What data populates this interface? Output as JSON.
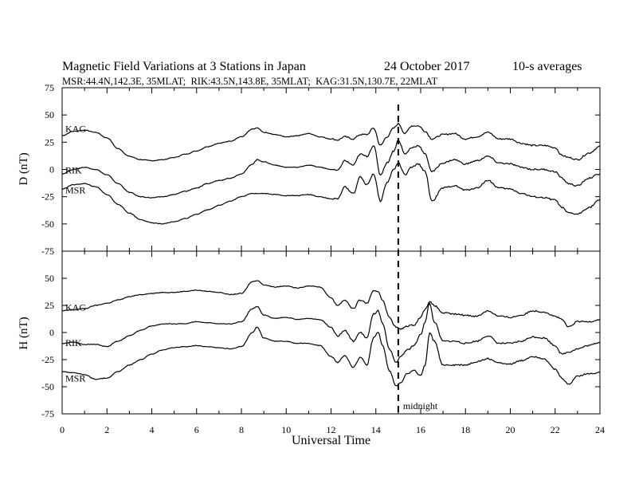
{
  "header": {
    "title": "Magnetic Field Variations at 3 Stations in Japan",
    "date": "24 October 2017",
    "averaging": "10-s averages",
    "stations_line": "MSR:44.4N,142.3E, 35MLAT;  RIK:43.5N,143.8E, 35MLAT;  KAG:31.5N,130.7E, 22MLAT"
  },
  "chart_data": [
    {
      "type": "line",
      "ylabel": "D (nT)",
      "xlim": [
        0,
        24
      ],
      "ylim": [
        -75,
        75
      ],
      "y_ticks": [
        "75",
        "50",
        "25",
        "0",
        "-25",
        "-50",
        "-75"
      ],
      "series": [
        {
          "name": "KAG",
          "x": [
            0,
            0.5,
            1,
            1.5,
            2,
            2.5,
            3,
            3.5,
            4,
            4.5,
            5,
            5.5,
            6,
            6.5,
            7,
            7.5,
            8,
            8.5,
            8.7,
            9,
            9.5,
            10,
            10.5,
            11,
            11.5,
            12,
            12.3,
            12.6,
            13,
            13.3,
            13.6,
            13.9,
            14.2,
            14.5,
            14.8,
            15,
            15.3,
            15.6,
            15.9,
            16.2,
            16.5,
            17,
            17.5,
            18,
            18.5,
            19,
            19.5,
            20,
            20.5,
            21,
            21.5,
            22,
            22.3,
            22.6,
            23,
            23.5,
            24
          ],
          "values": [
            31,
            35,
            36,
            34,
            29,
            19,
            12,
            9,
            8,
            9,
            11,
            14,
            17,
            21,
            24,
            26,
            30,
            37,
            38,
            34,
            32,
            30,
            31,
            33,
            30,
            28,
            27,
            30,
            28,
            32,
            32,
            38,
            22,
            30,
            38,
            42,
            33,
            40,
            40,
            35,
            28,
            32,
            33,
            28,
            30,
            34,
            28,
            28,
            24,
            22,
            22,
            20,
            13,
            11,
            9,
            15,
            21
          ]
        },
        {
          "name": "RIK",
          "x": [
            0,
            0.5,
            1,
            1.5,
            2,
            2.5,
            3,
            3.5,
            4,
            4.5,
            5,
            5.5,
            6,
            6.5,
            7,
            7.5,
            8,
            8.5,
            8.7,
            9,
            9.5,
            10,
            10.5,
            11,
            11.5,
            12,
            12.3,
            12.6,
            13,
            13.3,
            13.6,
            13.9,
            14.2,
            14.5,
            14.8,
            15,
            15.3,
            15.6,
            15.9,
            16.2,
            16.5,
            17,
            17.5,
            18,
            18.5,
            19,
            19.5,
            20,
            20.5,
            21,
            21.5,
            22,
            22.3,
            22.6,
            23,
            23.5,
            24
          ],
          "values": [
            -4,
            0,
            2,
            0,
            -5,
            -13,
            -21,
            -25,
            -26,
            -25,
            -23,
            -20,
            -17,
            -13,
            -10,
            -8,
            -4,
            5,
            9,
            7,
            4,
            2,
            2,
            4,
            2,
            0,
            -1,
            8,
            4,
            14,
            12,
            22,
            -5,
            6,
            17,
            27,
            14,
            20,
            22,
            14,
            -2,
            6,
            9,
            5,
            8,
            12,
            6,
            5,
            2,
            0,
            0,
            -2,
            -8,
            -13,
            -15,
            -8,
            -4
          ]
        },
        {
          "name": "MSR",
          "x": [
            0,
            0.5,
            1,
            1.5,
            2,
            2.5,
            3,
            3.5,
            4,
            4.5,
            5,
            5.5,
            6,
            6.5,
            7,
            7.5,
            8,
            8.5,
            8.7,
            9,
            9.5,
            10,
            10.5,
            11,
            11.5,
            12,
            12.3,
            12.6,
            13,
            13.3,
            13.6,
            13.9,
            14.2,
            14.5,
            14.8,
            15,
            15.3,
            15.6,
            15.9,
            16.2,
            16.5,
            17,
            17.5,
            18,
            18.5,
            19,
            19.5,
            20,
            20.5,
            21,
            21.5,
            22,
            22.3,
            22.6,
            23,
            23.5,
            24
          ],
          "values": [
            -18,
            -14,
            -13,
            -16,
            -23,
            -32,
            -40,
            -46,
            -49,
            -50,
            -48,
            -45,
            -41,
            -37,
            -33,
            -29,
            -25,
            -22,
            -22,
            -22,
            -23,
            -24,
            -24,
            -23,
            -25,
            -27,
            -27,
            -16,
            -22,
            -7,
            -14,
            -4,
            -29,
            -12,
            0,
            6,
            -5,
            2,
            5,
            -2,
            -29,
            -17,
            -15,
            -19,
            -17,
            -10,
            -17,
            -18,
            -22,
            -25,
            -26,
            -28,
            -35,
            -40,
            -41,
            -35,
            -28
          ]
        }
      ]
    },
    {
      "type": "line",
      "ylabel": "H (nT)",
      "xlabel": "Universal Time",
      "xlim": [
        0,
        24
      ],
      "ylim": [
        -75,
        75
      ],
      "y_ticks": [
        "50",
        "25",
        "0",
        "-25",
        "-50",
        "-75"
      ],
      "x_ticks": [
        "0",
        "2",
        "4",
        "6",
        "8",
        "10",
        "12",
        "14",
        "16",
        "18",
        "20",
        "22",
        "24"
      ],
      "annotation": "midnight",
      "midnight_ut": 15,
      "series": [
        {
          "name": "KAG",
          "x": [
            0,
            0.5,
            1,
            1.5,
            2,
            2.5,
            3,
            3.5,
            4,
            4.5,
            5,
            5.5,
            6,
            6.5,
            7,
            7.5,
            8,
            8.5,
            8.7,
            9,
            9.5,
            10,
            10.5,
            11,
            11.5,
            12,
            12.3,
            12.6,
            13,
            13.3,
            13.6,
            13.9,
            14.1,
            14.3,
            14.6,
            14.9,
            15.1,
            15.4,
            15.7,
            16,
            16.2,
            16.4,
            16.6,
            17,
            17.5,
            18,
            18.5,
            19,
            19.5,
            20,
            20.5,
            21,
            21.5,
            22,
            22.3,
            22.6,
            23,
            23.5,
            24
          ],
          "values": [
            20,
            21,
            22,
            25,
            27,
            30,
            33,
            35,
            36,
            37,
            37,
            38,
            39,
            38,
            37,
            35,
            36,
            47,
            48,
            44,
            42,
            43,
            41,
            43,
            42,
            32,
            25,
            30,
            22,
            30,
            27,
            38,
            38,
            30,
            14,
            5,
            3,
            6,
            7,
            14,
            22,
            28,
            25,
            18,
            17,
            16,
            15,
            20,
            15,
            14,
            16,
            20,
            19,
            15,
            12,
            5,
            10,
            10,
            12
          ]
        },
        {
          "name": "RIK",
          "x": [
            0,
            0.5,
            1,
            1.5,
            2,
            2.5,
            3,
            3.5,
            4,
            4.5,
            5,
            5.5,
            6,
            6.5,
            7,
            7.5,
            8,
            8.5,
            8.7,
            9,
            9.5,
            10,
            10.5,
            11,
            11.5,
            12,
            12.3,
            12.6,
            13,
            13.3,
            13.6,
            13.9,
            14.1,
            14.3,
            14.6,
            14.9,
            15.1,
            15.4,
            15.7,
            16,
            16.2,
            16.4,
            16.6,
            17,
            17.5,
            18,
            18.5,
            19,
            19.5,
            20,
            20.5,
            21,
            21.5,
            22,
            22.3,
            22.6,
            23,
            23.5,
            24
          ],
          "values": [
            -10,
            -9,
            -11,
            -11,
            -13,
            -8,
            -3,
            2,
            6,
            8,
            8,
            8,
            10,
            9,
            8,
            8,
            10,
            22,
            24,
            16,
            13,
            14,
            12,
            13,
            12,
            5,
            -3,
            2,
            -8,
            0,
            -5,
            17,
            20,
            8,
            -15,
            -28,
            -22,
            -16,
            -12,
            -2,
            10,
            27,
            10,
            -8,
            -8,
            -10,
            -8,
            -3,
            -10,
            -10,
            -8,
            -4,
            -5,
            -12,
            -20,
            -18,
            -15,
            -12,
            -9
          ]
        },
        {
          "name": "MSR",
          "x": [
            0,
            0.5,
            1,
            1.5,
            2,
            2.5,
            3,
            3.5,
            4,
            4.5,
            5,
            5.5,
            6,
            6.5,
            7,
            7.5,
            8,
            8.5,
            8.7,
            9,
            9.5,
            10,
            10.5,
            11,
            11.5,
            12,
            12.3,
            12.6,
            13,
            13.3,
            13.6,
            13.9,
            14.1,
            14.3,
            14.6,
            14.9,
            15.1,
            15.4,
            15.7,
            16,
            16.2,
            16.4,
            16.6,
            17,
            17.5,
            18,
            18.5,
            19,
            19.5,
            20,
            20.5,
            21,
            21.5,
            22,
            22.3,
            22.6,
            23,
            23.5,
            24
          ],
          "values": [
            -36,
            -37,
            -39,
            -43,
            -42,
            -36,
            -30,
            -25,
            -20,
            -16,
            -14,
            -13,
            -12,
            -13,
            -14,
            -15,
            -13,
            0,
            5,
            -5,
            -8,
            -8,
            -10,
            -10,
            -12,
            -22,
            -28,
            -21,
            -32,
            -23,
            -30,
            -5,
            0,
            -12,
            -35,
            -49,
            -46,
            -38,
            -35,
            -40,
            -30,
            0,
            -8,
            -30,
            -30,
            -30,
            -27,
            -24,
            -28,
            -29,
            -26,
            -22,
            -24,
            -34,
            -42,
            -48,
            -40,
            -38,
            -37
          ]
        }
      ]
    }
  ]
}
